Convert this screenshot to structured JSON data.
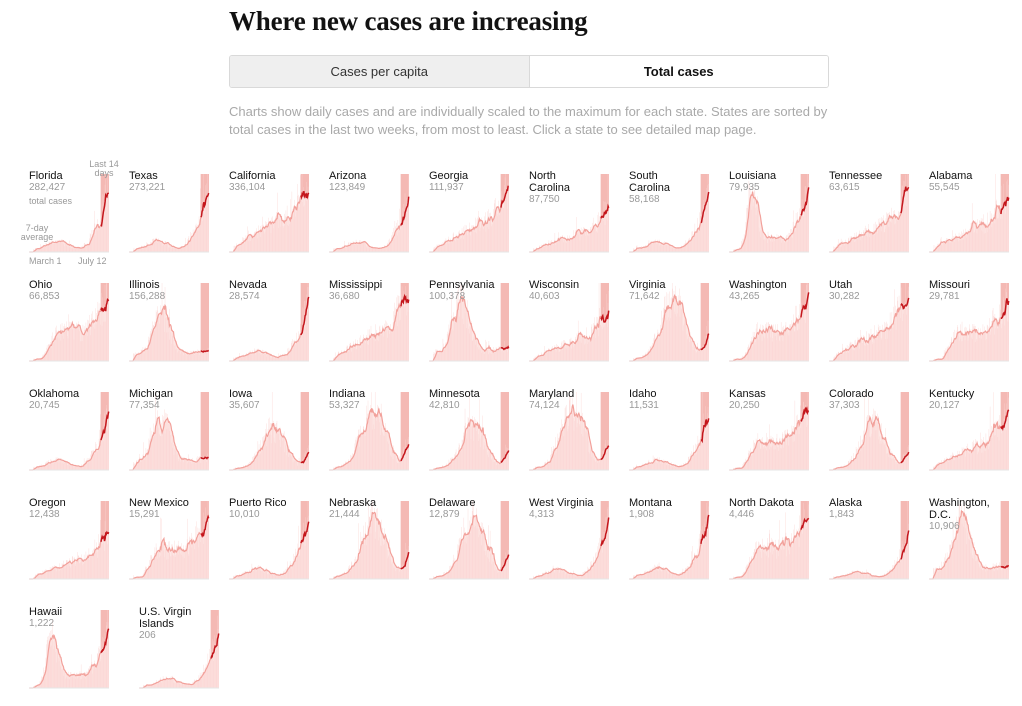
{
  "title": "Where new cases are increasing",
  "toggle": {
    "options": [
      "Cases per capita",
      "Total cases"
    ],
    "selected": "Total cases"
  },
  "description": "Charts show daily cases and are individually scaled to the maximum for each state. States are sorted by total cases in the last two weeks, from most to least. Click a state to see detailed map page.",
  "legend": {
    "total_cases_label": "total cases",
    "last14_label": "Last 14 days",
    "avg_label": "7-day average",
    "start_label": "March 1",
    "end_label": "July 12"
  },
  "colors": {
    "bar": "#fbd4d1",
    "area": "#fde7e5",
    "line": "#f2a19b",
    "highlight": "#f4b9b4",
    "recent_line": "#c4161c"
  },
  "chart_data": {
    "type": "area",
    "description_series": "Small multiples of daily new cases per state, March 1 to July 12, each scaled to its own maximum; last 14 days highlighted.",
    "x_range": [
      "March 1",
      "July 12"
    ],
    "states": [
      {
        "name": "Florida",
        "total": "282,427",
        "shape": "lateSurge"
      },
      {
        "name": "Texas",
        "total": "273,221",
        "shape": "lateSurge"
      },
      {
        "name": "California",
        "total": "336,104",
        "shape": "steadyRise"
      },
      {
        "name": "Arizona",
        "total": "123,849",
        "shape": "lateSurge"
      },
      {
        "name": "Georgia",
        "total": "111,937",
        "shape": "steadyRise"
      },
      {
        "name": "North Carolina",
        "total": "87,750",
        "shape": "steadyRise"
      },
      {
        "name": "South Carolina",
        "total": "58,168",
        "shape": "lateSurge"
      },
      {
        "name": "Louisiana",
        "total": "79,935",
        "shape": "earlyPeakRise"
      },
      {
        "name": "Tennessee",
        "total": "63,615",
        "shape": "steadyRise"
      },
      {
        "name": "Alabama",
        "total": "55,545",
        "shape": "steadyRise"
      },
      {
        "name": "Ohio",
        "total": "66,853",
        "shape": "plateauRise"
      },
      {
        "name": "Illinois",
        "total": "156,288",
        "shape": "earlyPeak"
      },
      {
        "name": "Nevada",
        "total": "28,574",
        "shape": "lateSurge"
      },
      {
        "name": "Mississippi",
        "total": "36,680",
        "shape": "steadyRise"
      },
      {
        "name": "Pennsylvania",
        "total": "100,378",
        "shape": "earlyPeak"
      },
      {
        "name": "Wisconsin",
        "total": "40,603",
        "shape": "steadyRise"
      },
      {
        "name": "Virginia",
        "total": "71,642",
        "shape": "midPeak"
      },
      {
        "name": "Washington",
        "total": "43,265",
        "shape": "plateauRise"
      },
      {
        "name": "Utah",
        "total": "30,282",
        "shape": "steadyRise"
      },
      {
        "name": "Missouri",
        "total": "29,781",
        "shape": "plateauRise"
      },
      {
        "name": "Oklahoma",
        "total": "20,745",
        "shape": "lateSurge"
      },
      {
        "name": "Michigan",
        "total": "77,354",
        "shape": "earlyPeak"
      },
      {
        "name": "Iowa",
        "total": "35,607",
        "shape": "midPeak"
      },
      {
        "name": "Indiana",
        "total": "53,327",
        "shape": "midPeak"
      },
      {
        "name": "Minnesota",
        "total": "42,810",
        "shape": "midPeak"
      },
      {
        "name": "Maryland",
        "total": "74,124",
        "shape": "midPeak"
      },
      {
        "name": "Idaho",
        "total": "11,531",
        "shape": "lateSurge"
      },
      {
        "name": "Kansas",
        "total": "20,250",
        "shape": "plateauRise"
      },
      {
        "name": "Colorado",
        "total": "37,303",
        "shape": "midPeak"
      },
      {
        "name": "Kentucky",
        "total": "20,127",
        "shape": "steadyRise"
      },
      {
        "name": "Oregon",
        "total": "12,438",
        "shape": "steadyRise"
      },
      {
        "name": "New Mexico",
        "total": "15,291",
        "shape": "plateauRise"
      },
      {
        "name": "Puerto Rico",
        "total": "10,010",
        "shape": "lateSurge"
      },
      {
        "name": "Nebraska",
        "total": "21,444",
        "shape": "midPeak"
      },
      {
        "name": "Delaware",
        "total": "12,879",
        "shape": "midPeak"
      },
      {
        "name": "West Virginia",
        "total": "4,313",
        "shape": "lateSurge"
      },
      {
        "name": "Montana",
        "total": "1,908",
        "shape": "lateSurge"
      },
      {
        "name": "North Dakota",
        "total": "4,446",
        "shape": "plateauRise"
      },
      {
        "name": "Alaska",
        "total": "1,843",
        "shape": "lateSurge"
      },
      {
        "name": "Washington, D.C.",
        "total": "10,906",
        "shape": "earlyPeak"
      },
      {
        "name": "Hawaii",
        "total": "1,222",
        "shape": "earlyPeakRise"
      },
      {
        "name": "U.S. Virgin Islands",
        "total": "206",
        "shape": "lateSurge"
      }
    ]
  }
}
